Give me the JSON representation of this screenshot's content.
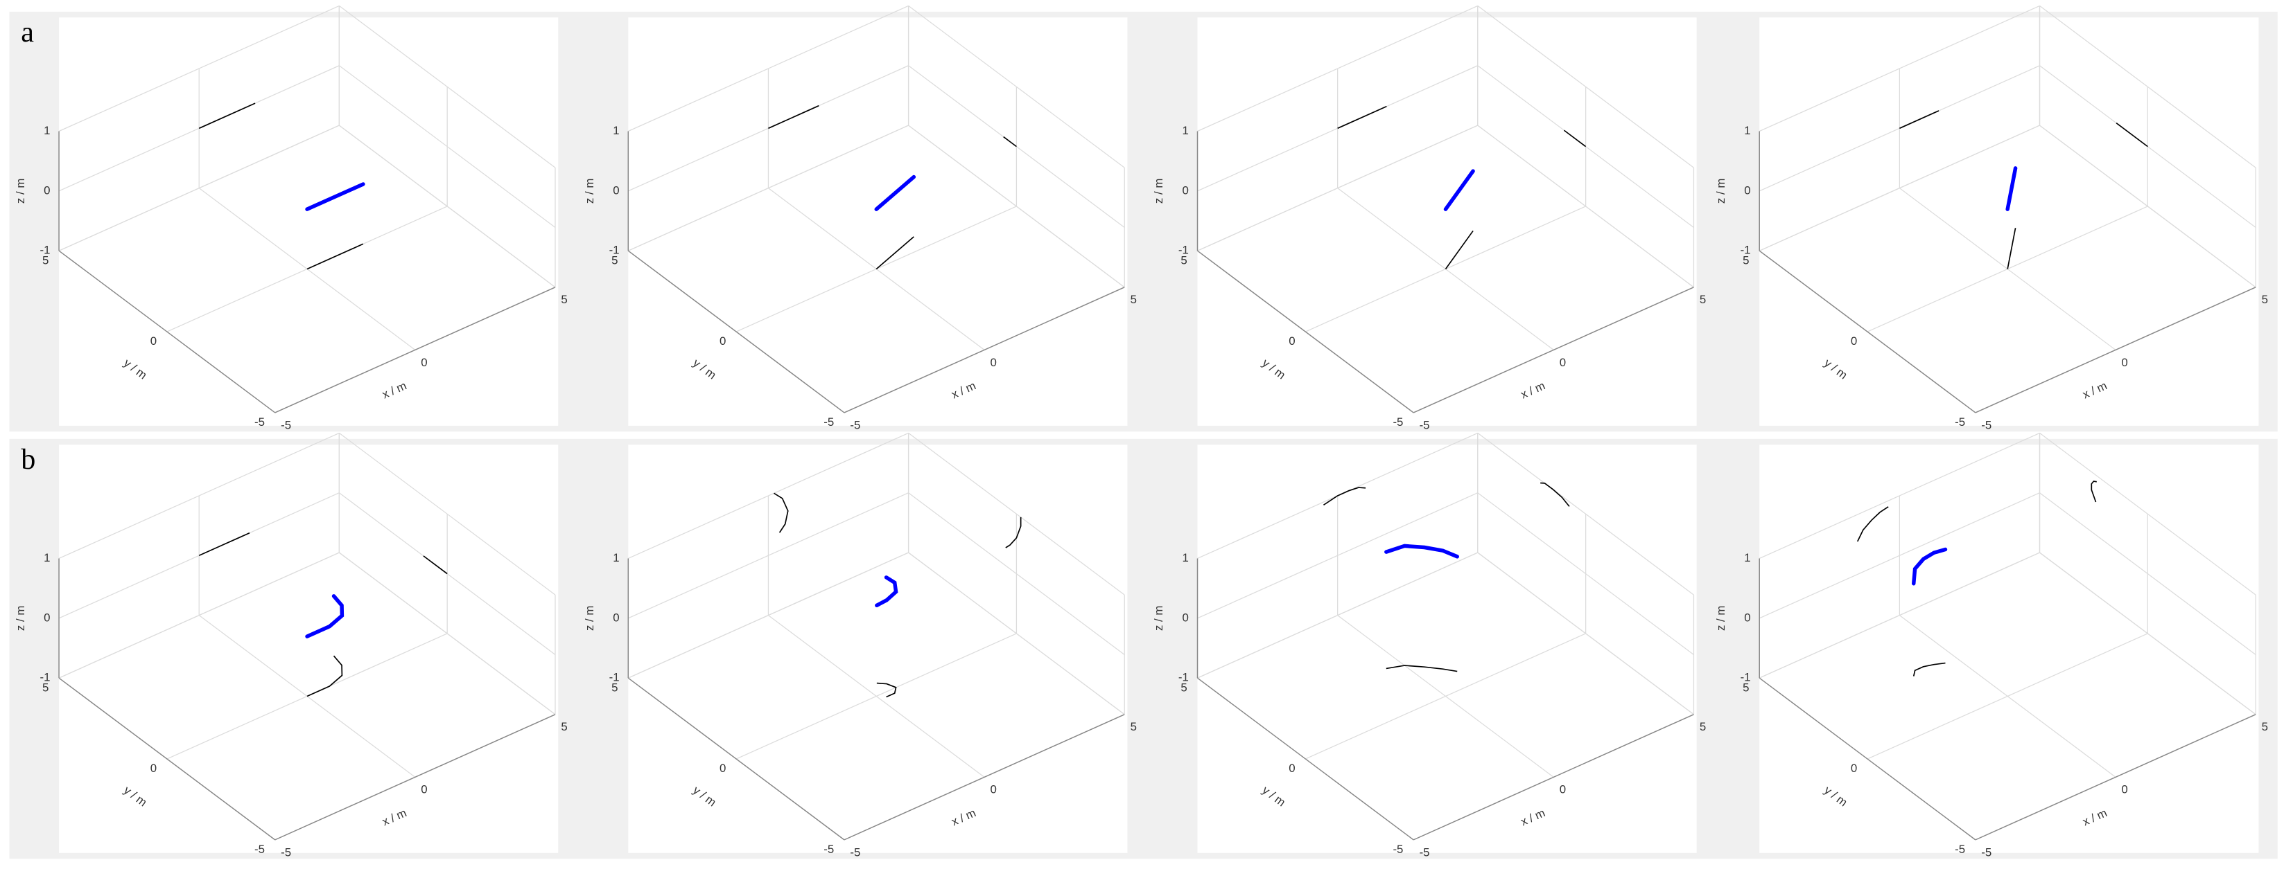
{
  "row_labels": [
    "a",
    "b"
  ],
  "chart_data": [
    {
      "type": "line3d",
      "xlabel": "x / m",
      "ylabel": "y / m",
      "zlabel": "z / m",
      "xlim": [
        -5,
        5
      ],
      "ylim": [
        -5,
        5
      ],
      "zlim": [
        -1,
        1
      ],
      "xticks": [
        -5,
        0,
        5
      ],
      "yticks": [
        -5,
        0,
        5
      ],
      "zticks": [
        -1,
        0,
        1
      ],
      "grid": true,
      "projection_color": "#000000",
      "series": [
        {
          "color": "#0000ff",
          "x": [
            0,
            2
          ],
          "y": [
            0,
            0
          ],
          "z": [
            0,
            0
          ]
        }
      ]
    },
    {
      "type": "line3d",
      "xlabel": "x / m",
      "ylabel": "y / m",
      "zlabel": "z / m",
      "xlim": [
        -5,
        5
      ],
      "ylim": [
        -5,
        5
      ],
      "zlim": [
        -1,
        1
      ],
      "xticks": [
        -5,
        0,
        5
      ],
      "yticks": [
        -5,
        0,
        5
      ],
      "zticks": [
        -1,
        0,
        1
      ],
      "grid": true,
      "projection_color": "#000000",
      "series": [
        {
          "color": "#0000ff",
          "x": [
            0,
            1.8
          ],
          "y": [
            0,
            0.6
          ],
          "z": [
            0,
            0
          ]
        }
      ]
    },
    {
      "type": "line3d",
      "xlabel": "x / m",
      "ylabel": "y / m",
      "zlabel": "z / m",
      "xlim": [
        -5,
        5
      ],
      "ylim": [
        -5,
        5
      ],
      "zlim": [
        -1,
        1
      ],
      "xticks": [
        -5,
        0,
        5
      ],
      "yticks": [
        -5,
        0,
        5
      ],
      "zticks": [
        -1,
        0,
        1
      ],
      "grid": true,
      "projection_color": "#000000",
      "series": [
        {
          "color": "#0000ff",
          "x": [
            0,
            1.75
          ],
          "y": [
            0,
            1
          ],
          "z": [
            0,
            0
          ]
        }
      ]
    },
    {
      "type": "line3d",
      "xlabel": "x / m",
      "ylabel": "y / m",
      "zlabel": "z / m",
      "xlim": [
        -5,
        5
      ],
      "ylim": [
        -5,
        5
      ],
      "zlim": [
        -1,
        1
      ],
      "xticks": [
        -5,
        0,
        5
      ],
      "yticks": [
        -5,
        0,
        5
      ],
      "zticks": [
        -1,
        0,
        1
      ],
      "grid": true,
      "projection_color": "#000000",
      "series": [
        {
          "color": "#0000ff",
          "x": [
            0,
            1.4
          ],
          "y": [
            0,
            1.45
          ],
          "z": [
            0,
            0
          ]
        }
      ]
    },
    {
      "type": "line3d",
      "xlabel": "x / m",
      "ylabel": "y / m",
      "zlabel": "z / m",
      "xlim": [
        -5,
        5
      ],
      "ylim": [
        -5,
        5
      ],
      "zlim": [
        -1,
        1
      ],
      "xticks": [
        -5,
        0,
        5
      ],
      "yticks": [
        -5,
        0,
        5
      ],
      "zticks": [
        -1,
        0,
        1
      ],
      "grid": true,
      "projection_color": "#000000",
      "series": [
        {
          "color": "#0000ff",
          "x": [
            0,
            0.8,
            1.4,
            1.7,
            1.8
          ],
          "y": [
            0,
            0,
            0.2,
            0.6,
            1.1
          ],
          "z": [
            0,
            0,
            0,
            0,
            0
          ]
        }
      ]
    },
    {
      "type": "line3d",
      "xlabel": "x / m",
      "ylabel": "y / m",
      "zlabel": "z / m",
      "xlim": [
        -5,
        5
      ],
      "ylim": [
        -5,
        5
      ],
      "zlim": [
        -1,
        1
      ],
      "xticks": [
        -5,
        0,
        5
      ],
      "yticks": [
        -5,
        0,
        5
      ],
      "zticks": [
        -1,
        0,
        1
      ],
      "grid": true,
      "projection_color": "#000000",
      "series": [
        {
          "color": "#0000ff",
          "x": [
            0.2,
            0.5,
            0.7,
            0.6,
            0.4
          ],
          "y": [
            -0.2,
            -0.2,
            0,
            0.3,
            0.5
          ],
          "z": [
            1,
            0.85,
            0.6,
            0.4,
            0.3
          ]
        }
      ]
    },
    {
      "type": "line3d",
      "xlabel": "x / m",
      "ylabel": "y / m",
      "zlabel": "z / m",
      "xlim": [
        -5,
        5
      ],
      "ylim": [
        -5,
        5
      ],
      "zlim": [
        -1,
        1
      ],
      "xticks": [
        -5,
        0,
        5
      ],
      "yticks": [
        -5,
        0,
        5
      ],
      "zticks": [
        -1,
        0,
        1
      ],
      "grid": true,
      "projection_color": "#000000",
      "series": [
        {
          "color": "#0000ff",
          "x": [
            -0.5,
            0,
            0.4,
            0.75,
            1
          ],
          "y": [
            2.1,
            1.9,
            1.5,
            1.1,
            0.76
          ],
          "z": [
            0.95,
            1,
            1,
            0.98,
            0.92
          ]
        }
      ]
    },
    {
      "type": "line3d",
      "xlabel": "x / m",
      "ylabel": "y / m",
      "zlabel": "z / m",
      "xlim": [
        -5,
        5
      ],
      "ylim": [
        -5,
        5
      ],
      "zlim": [
        -1,
        1
      ],
      "xticks": [
        -5,
        0,
        5
      ],
      "yticks": [
        -5,
        0,
        5
      ],
      "zticks": [
        -1,
        0,
        1
      ],
      "grid": true,
      "projection_color": "#000000",
      "series": [
        {
          "color": "#0000ff",
          "x": [
            -1.5,
            -1.3,
            -1,
            -0.7,
            -0.4
          ],
          "y": [
            2.4,
            2.6,
            2.6,
            2.5,
            2.36
          ],
          "z": [
            0.55,
            0.7,
            0.8,
            0.87,
            0.9
          ]
        }
      ]
    }
  ]
}
